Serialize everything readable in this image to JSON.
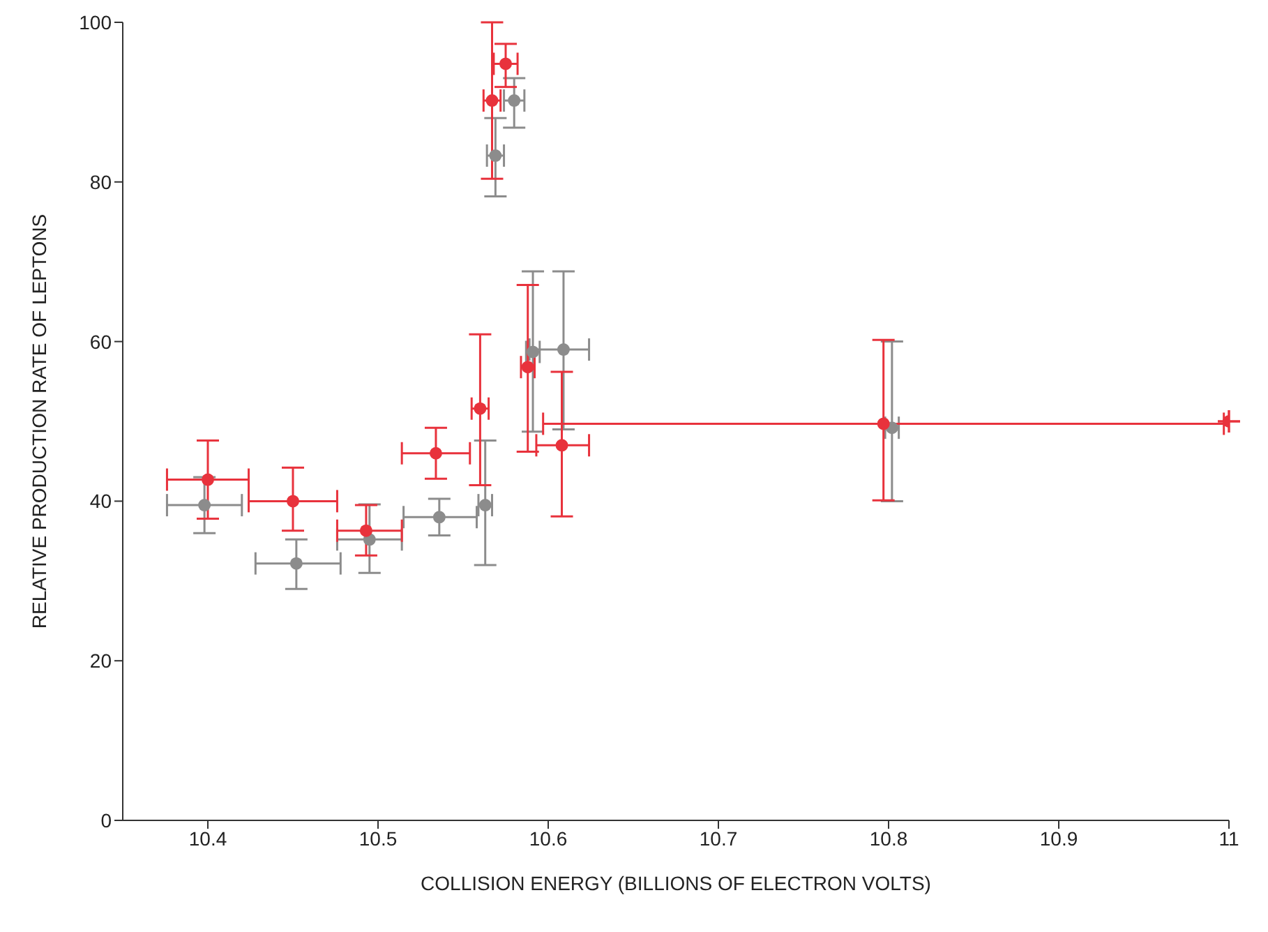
{
  "chart_data": {
    "type": "scatter",
    "xlabel": "COLLISION ENERGY (BILLIONS OF ELECTRON VOLTS)",
    "ylabel": "RELATIVE PRODUCTION RATE OF LEPTONS",
    "xlim": [
      10.35,
      11
    ],
    "xticks": [
      10.4,
      10.5,
      10.6,
      10.7,
      10.8,
      10.9,
      11
    ],
    "ylim": [
      0,
      100
    ],
    "yticks": [
      0,
      20,
      40,
      60,
      80,
      100
    ],
    "grid": false,
    "legend": false,
    "marker": "circle",
    "series": [
      {
        "color": "#8c8c8c",
        "x": [
          10.398,
          10.452,
          10.495,
          10.536,
          10.563,
          10.569,
          10.58,
          10.591,
          10.609,
          10.802
        ],
        "values": [
          39.5,
          32.2,
          35.2,
          38,
          39.5,
          83.3,
          90.2,
          58.7,
          59,
          49.2
        ],
        "errors": [
          [
            36,
            43
          ],
          [
            29,
            35.2
          ],
          [
            31,
            39.6
          ],
          [
            35.7,
            40.3
          ],
          [
            32,
            47.6
          ],
          [
            78.2,
            88
          ],
          [
            86.8,
            93
          ],
          [
            48.7,
            68.8
          ],
          [
            49,
            68.8
          ],
          [
            40,
            60
          ]
        ],
        "xerrors": [
          [
            10.376,
            10.42
          ],
          [
            10.428,
            10.478
          ],
          [
            10.476,
            10.514
          ],
          [
            10.515,
            10.558
          ],
          0.004,
          0.005,
          0.006,
          0.004,
          [
            10.589,
            10.624
          ],
          0.004
        ]
      },
      {
        "color": "#e8323c",
        "x": [
          10.4,
          10.45,
          10.493,
          10.534,
          10.56,
          10.567,
          10.575,
          10.588,
          10.608,
          10.797,
          11
        ],
        "values": [
          42.7,
          40,
          36.3,
          46,
          51.6,
          90.2,
          94.8,
          56.8,
          47,
          49.7,
          50
        ],
        "errors": [
          [
            37.8,
            47.6
          ],
          [
            36.3,
            44.2
          ],
          [
            33.2,
            39.5
          ],
          [
            42.8,
            49.2
          ],
          [
            42,
            60.9
          ],
          [
            80.4,
            100
          ],
          [
            91.9,
            97.3
          ],
          [
            46.2,
            67.1
          ],
          [
            38.1,
            56.2
          ],
          [
            40.1,
            60.2
          ],
          null
        ],
        "xerrors": [
          0.024,
          0.026,
          [
            10.476,
            10.514
          ],
          0.02,
          0.005,
          0.005,
          0.007,
          0.004,
          [
            10.593,
            10.624
          ],
          0.2,
          null
        ]
      }
    ]
  }
}
